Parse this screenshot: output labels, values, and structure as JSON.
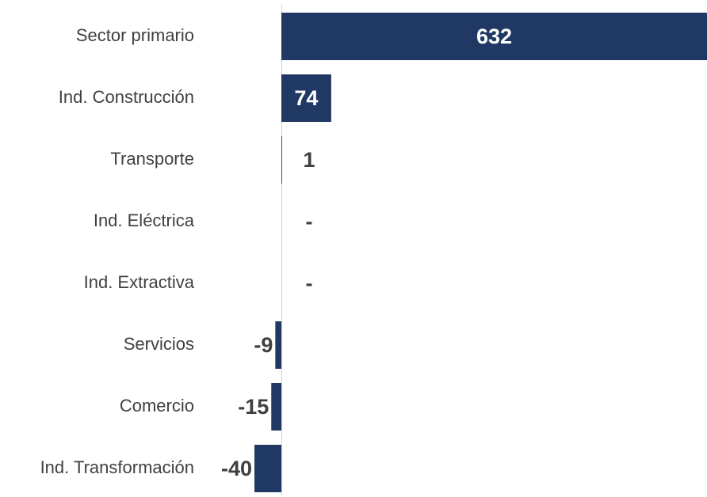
{
  "chart_data": {
    "type": "barh",
    "categories": [
      "Sector primario",
      "Ind. Construcción",
      "Transporte",
      "Ind. Eléctrica",
      "Ind. Extractiva",
      "Servicios",
      "Comercio",
      "Ind. Transformación"
    ],
    "values": [
      632,
      74,
      1,
      0,
      0,
      -9,
      -15,
      -40
    ],
    "value_labels": [
      "632",
      "74",
      "1",
      "-",
      "-",
      "-9",
      "-15",
      "-40"
    ],
    "color": "#203864"
  }
}
